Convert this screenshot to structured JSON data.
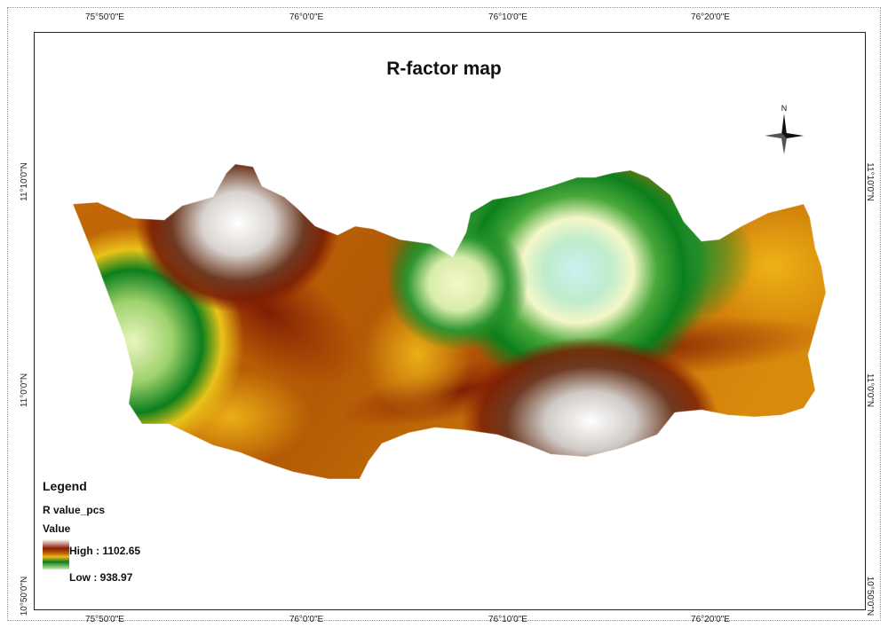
{
  "title": "R-factor map",
  "axes": {
    "top_ticks": [
      "75°50'0\"E",
      "76°0'0\"E",
      "76°10'0\"E",
      "76°20'0\"E"
    ],
    "bottom_ticks": [
      "75°50'0\"E",
      "76°0'0\"E",
      "76°10'0\"E",
      "76°20'0\"E"
    ],
    "left_ticks": [
      "11°10'0\"N",
      "11°0'0\"N",
      "10°50'0\"N"
    ],
    "right_ticks": [
      "11°10'0\"N",
      "11°0'0\"N",
      "10°50'0\"N"
    ]
  },
  "legend": {
    "title": "Legend",
    "layer": "R value_pcs",
    "field": "Value",
    "high_label": "High : 1102.65",
    "low_label": "Low : 938.97",
    "ramp_colors": [
      "#ffffff",
      "#8a1c04",
      "#c46a06",
      "#f0b818",
      "#0b7f1c",
      "#c8f0a8"
    ]
  },
  "north_arrow": {
    "label": "N",
    "icon": "north-arrow-icon"
  },
  "data_range": {
    "min": 938.97,
    "max": 1102.65
  }
}
